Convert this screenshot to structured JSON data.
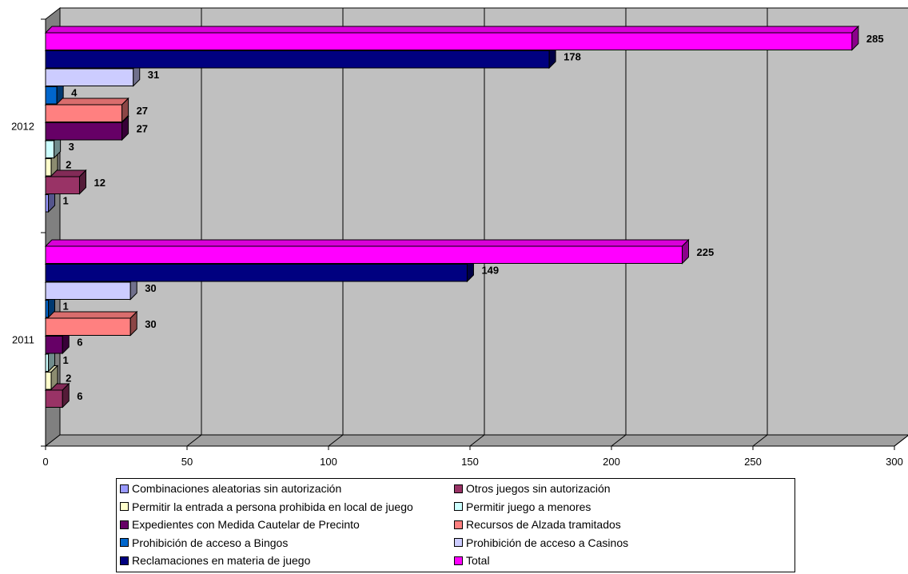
{
  "chart_data": {
    "type": "bar",
    "orientation": "horizontal",
    "three_d": true,
    "categories": [
      "2011",
      "2012"
    ],
    "xlim": [
      0,
      300
    ],
    "xticks": [
      0,
      50,
      100,
      150,
      200,
      250,
      300
    ],
    "grid": true,
    "legend_position": "bottom",
    "series": [
      {
        "name": "Combinaciones aleatorias sin autorización",
        "color": "#9999ff",
        "values": [
          null,
          1
        ]
      },
      {
        "name": "Otros juegos sin autorización",
        "color": "#993366",
        "values": [
          6,
          12
        ]
      },
      {
        "name": "Permitir la entrada a persona prohibida en local de juego",
        "color": "#ffffcc",
        "values": [
          2,
          2
        ]
      },
      {
        "name": "Permitir juego a menores",
        "color": "#ccffff",
        "values": [
          1,
          3
        ]
      },
      {
        "name": "Expedientes con Medida Cautelar de Precinto",
        "color": "#660066",
        "values": [
          6,
          27
        ]
      },
      {
        "name": "Recursos de Alzada tramitados",
        "color": "#ff8080",
        "values": [
          30,
          27
        ]
      },
      {
        "name": "Prohibición de acceso a Bingos",
        "color": "#0066cc",
        "values": [
          1,
          4
        ]
      },
      {
        "name": "Prohibición de acceso a Casinos",
        "color": "#ccccff",
        "values": [
          30,
          31
        ]
      },
      {
        "name": "Reclamaciones en materia de juego",
        "color": "#000080",
        "values": [
          149,
          178
        ]
      },
      {
        "name": "Total",
        "color": "#ff00ff",
        "values": [
          225,
          285
        ]
      }
    ]
  }
}
